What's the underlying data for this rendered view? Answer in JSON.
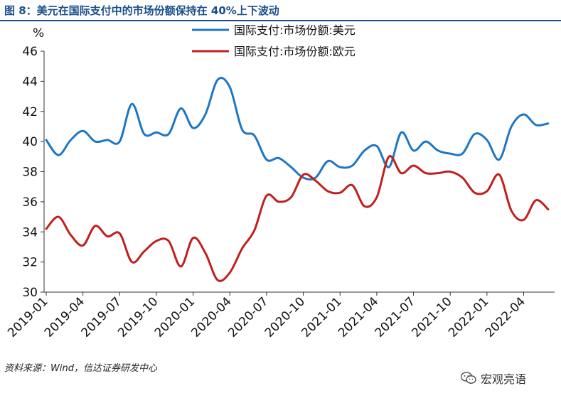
{
  "figure": {
    "title": "图 8：美元在国际支付中的市场份额保持在 40%上下波动",
    "source": "资料来源：Wind，信达证券研发中心",
    "watermark": "宏观亮语",
    "watermark_icon": "wechat-icon"
  },
  "chart_data": {
    "type": "line",
    "ylabel": "%",
    "ylim": [
      30,
      46
    ],
    "yticks": [
      "30",
      "32",
      "34",
      "36",
      "38",
      "40",
      "42",
      "44",
      "46"
    ],
    "xticks": [
      "2019-01",
      "2019-04",
      "2019-07",
      "2019-10",
      "2020-01",
      "2020-04",
      "2020-07",
      "2020-10",
      "2021-01",
      "2021-04",
      "2021-07",
      "2021-10",
      "2022-01",
      "2022-04"
    ],
    "x": [
      "2019-01",
      "2019-02",
      "2019-03",
      "2019-04",
      "2019-05",
      "2019-06",
      "2019-07",
      "2019-08",
      "2019-09",
      "2019-10",
      "2019-11",
      "2019-12",
      "2020-01",
      "2020-02",
      "2020-03",
      "2020-04",
      "2020-05",
      "2020-06",
      "2020-07",
      "2020-08",
      "2020-09",
      "2020-10",
      "2020-11",
      "2020-12",
      "2021-01",
      "2021-02",
      "2021-03",
      "2021-04",
      "2021-05",
      "2021-06",
      "2021-07",
      "2021-08",
      "2021-09",
      "2021-10",
      "2021-11",
      "2021-12",
      "2022-01",
      "2022-02",
      "2022-03",
      "2022-04",
      "2022-05",
      "2022-06"
    ],
    "series": [
      {
        "name": "国际支付:市场份额:美元",
        "color": "#1f77c4",
        "values": [
          40.1,
          39.1,
          40.1,
          40.7,
          40.0,
          40.1,
          40.0,
          42.5,
          40.5,
          40.6,
          40.5,
          42.2,
          40.9,
          41.8,
          44.1,
          43.6,
          40.8,
          40.4,
          38.8,
          38.9,
          38.3,
          37.6,
          37.6,
          38.7,
          38.3,
          38.4,
          39.4,
          39.7,
          38.3,
          40.6,
          39.4,
          40.0,
          39.4,
          39.2,
          39.2,
          40.5,
          40.1,
          38.8,
          41.0,
          41.8,
          41.1,
          41.2
        ]
      },
      {
        "name": "国际支付:市场份额:欧元",
        "color": "#c0201e",
        "values": [
          34.2,
          35.0,
          33.8,
          33.1,
          34.4,
          33.7,
          33.9,
          32.0,
          32.7,
          33.4,
          33.4,
          31.7,
          33.6,
          32.6,
          30.8,
          31.3,
          32.9,
          34.1,
          36.4,
          36.0,
          36.3,
          37.8,
          37.4,
          36.7,
          36.6,
          37.1,
          35.7,
          36.3,
          39.0,
          37.9,
          38.4,
          37.9,
          37.9,
          38.0,
          37.6,
          36.6,
          36.7,
          37.8,
          35.4,
          34.8,
          36.1,
          35.5
        ]
      }
    ],
    "legend_position": "top-center",
    "grid": false
  }
}
